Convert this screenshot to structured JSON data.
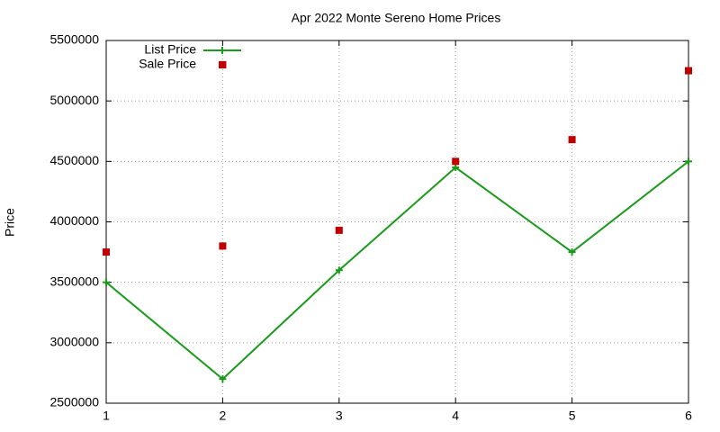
{
  "chart_data": {
    "type": "line",
    "title": "Apr 2022 Monte Sereno Home Prices",
    "ylabel": "Price",
    "series": [
      {
        "name": "List Price",
        "color": "#1a9a1a",
        "mode": "lines+markers",
        "x": [
          1,
          2,
          3,
          4,
          5,
          6
        ],
        "values": [
          3500000,
          2700000,
          3600000,
          4450000,
          3750000,
          4500000
        ]
      },
      {
        "name": "Sale Price",
        "color": "#c00000",
        "mode": "markers",
        "x": [
          1,
          2,
          2,
          3,
          4,
          5,
          6
        ],
        "values": [
          3750000,
          3800000,
          5300000,
          3930000,
          4500000,
          4680000,
          5250000
        ]
      }
    ],
    "xlim": [
      1,
      6
    ],
    "xticks": [
      1,
      2,
      3,
      4,
      5,
      6
    ],
    "ylim": [
      2500000,
      5500000
    ],
    "yticks": [
      2500000,
      3000000,
      3500000,
      4000000,
      4500000,
      5000000,
      5500000
    ],
    "grid": true,
    "legend": "top-left"
  }
}
